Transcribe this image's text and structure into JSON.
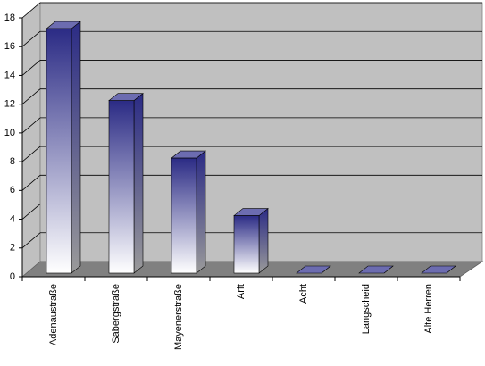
{
  "chart_data": {
    "type": "bar3d",
    "categories": [
      "Adenaustraße",
      "Sabergstraße",
      "Mayenerstraße",
      "Arft",
      "Acht",
      "Langscheid",
      "Alte Herren"
    ],
    "values": [
      17,
      12,
      8,
      4,
      0,
      0,
      0
    ],
    "color": "#2b2b85",
    "ylim": [
      0,
      18
    ],
    "yticks": [
      0,
      2,
      4,
      6,
      8,
      10,
      12,
      14,
      16,
      18
    ],
    "grid": true
  }
}
